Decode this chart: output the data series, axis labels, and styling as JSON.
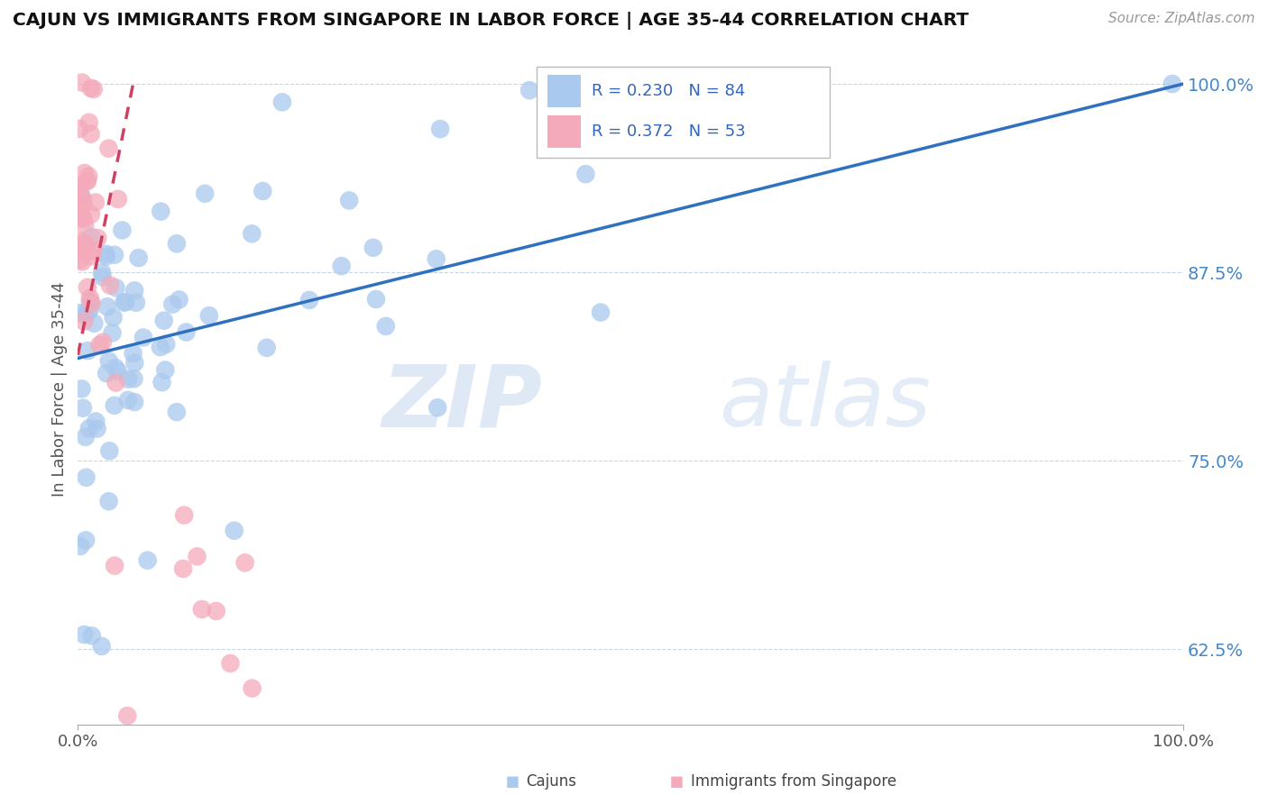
{
  "title": "CAJUN VS IMMIGRANTS FROM SINGAPORE IN LABOR FORCE | AGE 35-44 CORRELATION CHART",
  "source_text": "Source: ZipAtlas.com",
  "ylabel": "In Labor Force | Age 35-44",
  "blue_R": 0.23,
  "blue_N": 84,
  "pink_R": 0.372,
  "pink_N": 53,
  "blue_color": "#aac9ee",
  "pink_color": "#f4aaba",
  "blue_line_color": "#3070c0",
  "pink_line_color": "#d04060",
  "legend_label_blue": "Cajuns",
  "legend_label_pink": "Immigrants from Singapore",
  "watermark_zip": "ZIP",
  "watermark_atlas": "atlas",
  "xlim": [
    0.0,
    1.0
  ],
  "ylim": [
    0.575,
    1.02
  ],
  "yticks": [
    0.625,
    0.75,
    0.875,
    1.0
  ],
  "ytick_labels": [
    "62.5%",
    "75.0%",
    "87.5%",
    "100.0%"
  ],
  "blue_line_x0": 0.0,
  "blue_line_y0": 0.818,
  "blue_line_x1": 1.0,
  "blue_line_y1": 1.0,
  "pink_line_x0": 0.0,
  "pink_line_y0": 0.82,
  "pink_line_x1": 0.05,
  "pink_line_y1": 1.0
}
